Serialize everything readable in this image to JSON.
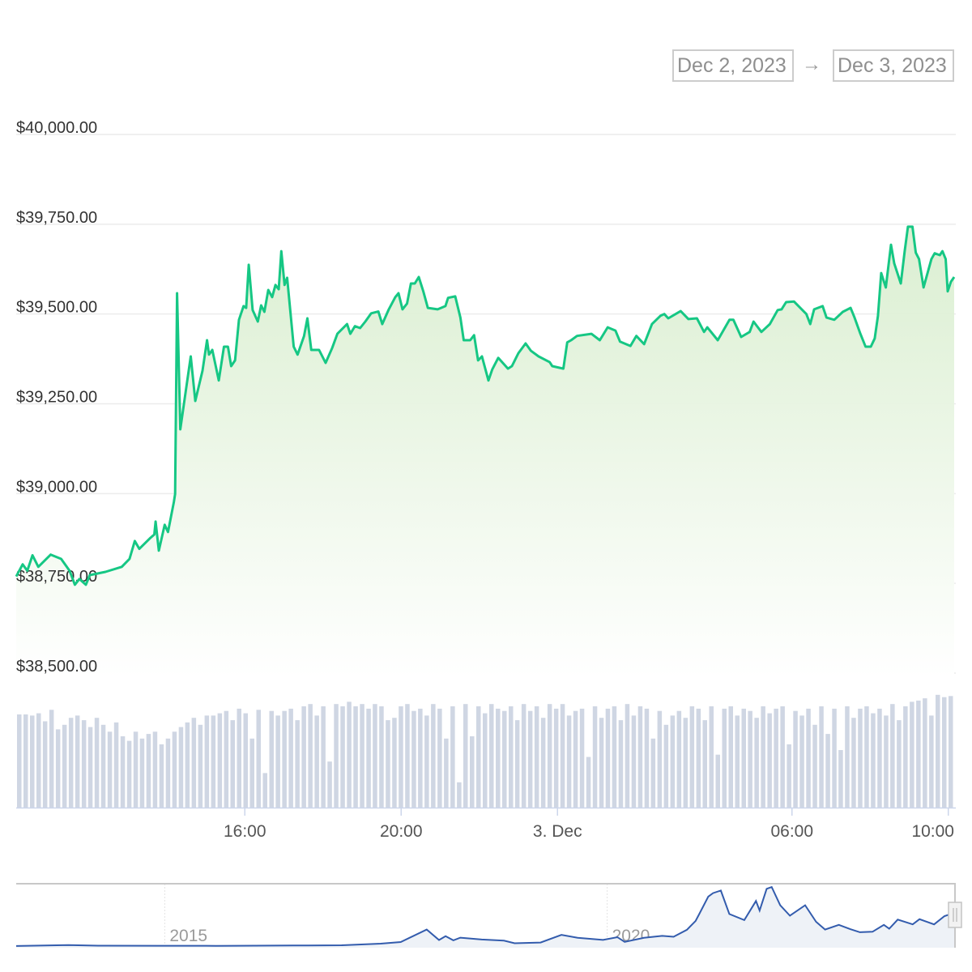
{
  "range_selector": {
    "from": "Dec 2, 2023",
    "arrow": "→",
    "to": "Dec 3, 2023"
  },
  "colors": {
    "line": "#16c784",
    "fill_top": "#d9eecf",
    "volume": "#cfd6e3",
    "navigator_line": "#335cad",
    "navigator_fill": "#eef2f7"
  },
  "chart_data": [
    {
      "type": "area",
      "xlim": [
        "2023-12-02 10:09",
        "2023-12-03 10:09"
      ],
      "ylim": [
        38500,
        40000
      ],
      "grid": true,
      "y_ticks": [
        {
          "value": 40000,
          "label": "$40,000.00"
        },
        {
          "value": 39750,
          "label": "$39,750.00"
        },
        {
          "value": 39500,
          "label": "$39,500.00"
        },
        {
          "value": 39250,
          "label": "$39,250.00"
        },
        {
          "value": 39000,
          "label": "$39,000.00"
        },
        {
          "value": 38750,
          "label": "$38,750.00"
        },
        {
          "value": 38500,
          "label": "$38,500.00"
        }
      ],
      "x_ticks": [
        {
          "time": "2023-12-02 16:00",
          "label": "16:00"
        },
        {
          "time": "2023-12-02 20:00",
          "label": "20:00"
        },
        {
          "time": "2023-12-03 00:00",
          "label": "3. Dec"
        },
        {
          "time": "2023-12-03 06:00",
          "label": "06:00"
        },
        {
          "time": "2023-12-03 10:00",
          "label": "10:00"
        }
      ],
      "points": [
        [
          "2023-12-02 10:09",
          38769
        ],
        [
          "2023-12-02 10:19",
          38803
        ],
        [
          "2023-12-02 10:26",
          38785
        ],
        [
          "2023-12-02 10:34",
          38828
        ],
        [
          "2023-12-02 10:43",
          38796
        ],
        [
          "2023-12-02 11:02",
          38830
        ],
        [
          "2023-12-02 11:18",
          38818
        ],
        [
          "2023-12-02 11:31",
          38785
        ],
        [
          "2023-12-02 11:39",
          38746
        ],
        [
          "2023-12-02 11:46",
          38762
        ],
        [
          "2023-12-02 11:56",
          38746
        ],
        [
          "2023-12-02 12:02",
          38773
        ],
        [
          "2023-12-02 12:26",
          38782
        ],
        [
          "2023-12-02 12:51",
          38796
        ],
        [
          "2023-12-02 13:03",
          38818
        ],
        [
          "2023-12-02 13:11",
          38868
        ],
        [
          "2023-12-02 13:18",
          38846
        ],
        [
          "2023-12-02 13:34",
          38875
        ],
        [
          "2023-12-02 13:41",
          38886
        ],
        [
          "2023-12-02 13:43",
          38922
        ],
        [
          "2023-12-02 13:48",
          38841
        ],
        [
          "2023-12-02 13:57",
          38913
        ],
        [
          "2023-12-02 14:02",
          38893
        ],
        [
          "2023-12-02 14:11",
          38976
        ],
        [
          "2023-12-02 14:13",
          38999
        ],
        [
          "2023-12-02 14:16",
          39558
        ],
        [
          "2023-12-02 14:21",
          39179
        ],
        [
          "2023-12-02 14:28",
          39269
        ],
        [
          "2023-12-02 14:37",
          39382
        ],
        [
          "2023-12-02 14:44",
          39258
        ],
        [
          "2023-12-02 14:55",
          39342
        ],
        [
          "2023-12-02 15:02",
          39427
        ],
        [
          "2023-12-02 15:05",
          39387
        ],
        [
          "2023-12-02 15:10",
          39400
        ],
        [
          "2023-12-02 15:20",
          39315
        ],
        [
          "2023-12-02 15:28",
          39409
        ],
        [
          "2023-12-02 15:34",
          39409
        ],
        [
          "2023-12-02 15:39",
          39355
        ],
        [
          "2023-12-02 15:45",
          39371
        ],
        [
          "2023-12-02 15:51",
          39484
        ],
        [
          "2023-12-02 15:58",
          39522
        ],
        [
          "2023-12-02 16:02",
          39517
        ],
        [
          "2023-12-02 16:06",
          39637
        ],
        [
          "2023-12-02 16:12",
          39511
        ],
        [
          "2023-12-02 16:20",
          39479
        ],
        [
          "2023-12-02 16:25",
          39524
        ],
        [
          "2023-12-02 16:30",
          39506
        ],
        [
          "2023-12-02 16:36",
          39567
        ],
        [
          "2023-12-02 16:42",
          39547
        ],
        [
          "2023-12-02 16:47",
          39581
        ],
        [
          "2023-12-02 16:52",
          39569
        ],
        [
          "2023-12-02 16:56",
          39675
        ],
        [
          "2023-12-02 17:01",
          39581
        ],
        [
          "2023-12-02 17:05",
          39601
        ],
        [
          "2023-12-02 17:15",
          39409
        ],
        [
          "2023-12-02 17:21",
          39387
        ],
        [
          "2023-12-02 17:31",
          39439
        ],
        [
          "2023-12-02 17:36",
          39488
        ],
        [
          "2023-12-02 17:42",
          39400
        ],
        [
          "2023-12-02 17:54",
          39400
        ],
        [
          "2023-12-02 18:04",
          39364
        ],
        [
          "2023-12-02 18:14",
          39405
        ],
        [
          "2023-12-02 18:22",
          39445
        ],
        [
          "2023-12-02 18:37",
          39472
        ],
        [
          "2023-12-02 18:42",
          39445
        ],
        [
          "2023-12-02 18:49",
          39466
        ],
        [
          "2023-12-02 18:57",
          39461
        ],
        [
          "2023-12-02 19:05",
          39479
        ],
        [
          "2023-12-02 19:14",
          39502
        ],
        [
          "2023-12-02 19:25",
          39507
        ],
        [
          "2023-12-02 19:31",
          39472
        ],
        [
          "2023-12-02 19:41",
          39513
        ],
        [
          "2023-12-02 19:51",
          39547
        ],
        [
          "2023-12-02 19:56",
          39558
        ],
        [
          "2023-12-02 20:02",
          39513
        ],
        [
          "2023-12-02 20:09",
          39529
        ],
        [
          "2023-12-02 20:15",
          39585
        ],
        [
          "2023-12-02 20:21",
          39585
        ],
        [
          "2023-12-02 20:27",
          39603
        ],
        [
          "2023-12-02 20:34",
          39563
        ],
        [
          "2023-12-02 20:41",
          39517
        ],
        [
          "2023-12-02 20:56",
          39513
        ],
        [
          "2023-12-02 21:08",
          39522
        ],
        [
          "2023-12-02 21:12",
          39545
        ],
        [
          "2023-12-02 21:23",
          39549
        ],
        [
          "2023-12-02 21:31",
          39490
        ],
        [
          "2023-12-02 21:36",
          39427
        ],
        [
          "2023-12-02 21:46",
          39427
        ],
        [
          "2023-12-02 21:52",
          39441
        ],
        [
          "2023-12-02 21:58",
          39371
        ],
        [
          "2023-12-02 22:04",
          39382
        ],
        [
          "2023-12-02 22:14",
          39315
        ],
        [
          "2023-12-02 22:20",
          39346
        ],
        [
          "2023-12-02 22:29",
          39378
        ],
        [
          "2023-12-02 22:38",
          39360
        ],
        [
          "2023-12-02 22:44",
          39348
        ],
        [
          "2023-12-02 22:50",
          39355
        ],
        [
          "2023-12-02 23:00",
          39391
        ],
        [
          "2023-12-02 23:11",
          39418
        ],
        [
          "2023-12-02 23:19",
          39398
        ],
        [
          "2023-12-02 23:31",
          39382
        ],
        [
          "2023-12-02 23:48",
          39366
        ],
        [
          "2023-12-02 23:52",
          39355
        ],
        [
          "2023-12-03 00:09",
          39348
        ],
        [
          "2023-12-03 00:15",
          39421
        ],
        [
          "2023-12-03 00:21",
          39427
        ],
        [
          "2023-12-03 00:30",
          39439
        ],
        [
          "2023-12-03 00:52",
          39445
        ],
        [
          "2023-12-03 01:05",
          39427
        ],
        [
          "2023-12-03 01:17",
          39463
        ],
        [
          "2023-12-03 01:29",
          39454
        ],
        [
          "2023-12-03 01:36",
          39423
        ],
        [
          "2023-12-03 01:52",
          39411
        ],
        [
          "2023-12-03 02:01",
          39439
        ],
        [
          "2023-12-03 02:13",
          39416
        ],
        [
          "2023-12-03 02:25",
          39472
        ],
        [
          "2023-12-03 02:38",
          39495
        ],
        [
          "2023-12-03 02:44",
          39500
        ],
        [
          "2023-12-03 02:50",
          39488
        ],
        [
          "2023-12-03 03:09",
          39508
        ],
        [
          "2023-12-03 03:21",
          39486
        ],
        [
          "2023-12-03 03:34",
          39488
        ],
        [
          "2023-12-03 03:45",
          39450
        ],
        [
          "2023-12-03 03:50",
          39463
        ],
        [
          "2023-12-03 04:06",
          39427
        ],
        [
          "2023-12-03 04:24",
          39484
        ],
        [
          "2023-12-03 04:30",
          39484
        ],
        [
          "2023-12-03 04:42",
          39436
        ],
        [
          "2023-12-03 04:55",
          39450
        ],
        [
          "2023-12-03 05:01",
          39479
        ],
        [
          "2023-12-03 05:13",
          39450
        ],
        [
          "2023-12-03 05:26",
          39472
        ],
        [
          "2023-12-03 05:38",
          39511
        ],
        [
          "2023-12-03 05:44",
          39513
        ],
        [
          "2023-12-03 05:51",
          39533
        ],
        [
          "2023-12-03 06:03",
          39535
        ],
        [
          "2023-12-03 06:22",
          39500
        ],
        [
          "2023-12-03 06:28",
          39472
        ],
        [
          "2023-12-03 06:34",
          39513
        ],
        [
          "2023-12-03 06:47",
          39522
        ],
        [
          "2023-12-03 06:53",
          39490
        ],
        [
          "2023-12-03 07:05",
          39484
        ],
        [
          "2023-12-03 07:18",
          39506
        ],
        [
          "2023-12-03 07:30",
          39517
        ],
        [
          "2023-12-03 07:36",
          39490
        ],
        [
          "2023-12-03 07:45",
          39445
        ],
        [
          "2023-12-03 07:53",
          39409
        ],
        [
          "2023-12-03 08:01",
          39409
        ],
        [
          "2023-12-03 08:07",
          39432
        ],
        [
          "2023-12-03 08:12",
          39495
        ],
        [
          "2023-12-03 08:17",
          39614
        ],
        [
          "2023-12-03 08:24",
          39574
        ],
        [
          "2023-12-03 08:32",
          39693
        ],
        [
          "2023-12-03 08:37",
          39641
        ],
        [
          "2023-12-03 08:47",
          39585
        ],
        [
          "2023-12-03 08:53",
          39675
        ],
        [
          "2023-12-03 08:58",
          39743
        ],
        [
          "2023-12-03 09:05",
          39743
        ],
        [
          "2023-12-03 09:10",
          39671
        ],
        [
          "2023-12-03 09:15",
          39653
        ],
        [
          "2023-12-03 09:22",
          39574
        ],
        [
          "2023-12-03 09:34",
          39653
        ],
        [
          "2023-12-03 09:39",
          39669
        ],
        [
          "2023-12-03 09:47",
          39664
        ],
        [
          "2023-12-03 09:51",
          39675
        ],
        [
          "2023-12-03 09:56",
          39653
        ],
        [
          "2023-12-03 09:59",
          39563
        ],
        [
          "2023-12-03 10:04",
          39590
        ],
        [
          "2023-12-03 10:09",
          39603
        ]
      ]
    },
    {
      "type": "bar",
      "volume_relative": [
        81,
        81,
        80,
        82,
        75,
        85,
        68,
        72,
        78,
        80,
        76,
        70,
        78,
        72,
        66,
        74,
        62,
        58,
        66,
        60,
        64,
        66,
        55,
        60,
        66,
        70,
        74,
        78,
        72,
        80,
        80,
        82,
        84,
        76,
        86,
        82,
        60,
        85,
        30,
        84,
        80,
        84,
        86,
        76,
        88,
        90,
        80,
        88,
        40,
        90,
        88,
        92,
        88,
        90,
        86,
        90,
        88,
        76,
        78,
        88,
        90,
        84,
        86,
        80,
        90,
        86,
        60,
        88,
        22,
        90,
        62,
        88,
        82,
        90,
        86,
        84,
        88,
        76,
        90,
        84,
        88,
        78,
        90,
        86,
        90,
        80,
        84,
        86,
        44,
        88,
        78,
        86,
        88,
        76,
        90,
        80,
        88,
        86,
        60,
        84,
        72,
        80,
        84,
        78,
        88,
        86,
        76,
        88,
        46,
        86,
        88,
        80,
        86,
        84,
        78,
        88,
        82,
        86,
        88,
        55,
        84,
        80,
        86,
        72,
        88,
        64,
        86,
        50,
        88,
        78,
        86,
        88,
        82,
        86,
        80,
        90,
        76,
        88,
        92,
        93,
        95,
        80,
        98,
        96,
        97
      ]
    },
    {
      "type": "area",
      "role": "navigator",
      "xlim": [
        "2013-04-28",
        "2023-12-03"
      ],
      "ylim": [
        0,
        70000
      ],
      "x_labels": [
        {
          "date": "2015-01-01",
          "label": "2015"
        },
        {
          "date": "2020-01-01",
          "label": "2020"
        }
      ],
      "points": [
        [
          "2013-04-28",
          130
        ],
        [
          "2013-11-30",
          1100
        ],
        [
          "2014-04-01",
          450
        ],
        [
          "2014-12-01",
          370
        ],
        [
          "2015-08-01",
          260
        ],
        [
          "2016-06-15",
          700
        ],
        [
          "2016-12-31",
          960
        ],
        [
          "2017-06-10",
          2800
        ],
        [
          "2017-09-01",
          4700
        ],
        [
          "2017-12-17",
          19000
        ],
        [
          "2018-02-06",
          7000
        ],
        [
          "2018-03-05",
          11400
        ],
        [
          "2018-04-06",
          6600
        ],
        [
          "2018-05-05",
          9700
        ],
        [
          "2018-08-01",
          7600
        ],
        [
          "2018-11-01",
          6300
        ],
        [
          "2018-12-15",
          3300
        ],
        [
          "2019-04-01",
          4100
        ],
        [
          "2019-06-26",
          12900
        ],
        [
          "2019-09-01",
          9600
        ],
        [
          "2019-12-15",
          7100
        ],
        [
          "2020-02-12",
          10300
        ],
        [
          "2020-03-13",
          4900
        ],
        [
          "2020-06-01",
          9500
        ],
        [
          "2020-08-15",
          11800
        ],
        [
          "2020-10-01",
          10700
        ],
        [
          "2020-11-25",
          18800
        ],
        [
          "2020-12-31",
          29000
        ],
        [
          "2021-01-15",
          37000
        ],
        [
          "2021-02-21",
          57000
        ],
        [
          "2021-03-13",
          61000
        ],
        [
          "2021-04-14",
          64000
        ],
        [
          "2021-05-19",
          37000
        ],
        [
          "2021-07-20",
          30000
        ],
        [
          "2021-09-06",
          52000
        ],
        [
          "2021-09-21",
          41000
        ],
        [
          "2021-10-20",
          66000
        ],
        [
          "2021-11-10",
          68000
        ],
        [
          "2021-12-15",
          47000
        ],
        [
          "2022-01-24",
          35000
        ],
        [
          "2022-03-28",
          47000
        ],
        [
          "2022-05-12",
          28000
        ],
        [
          "2022-06-18",
          19000
        ],
        [
          "2022-08-14",
          24500
        ],
        [
          "2022-09-30",
          19500
        ],
        [
          "2022-11-09",
          16000
        ],
        [
          "2022-12-31",
          16500
        ],
        [
          "2023-02-16",
          24500
        ],
        [
          "2023-03-10",
          20000
        ],
        [
          "2023-04-14",
          30500
        ],
        [
          "2023-06-15",
          25000
        ],
        [
          "2023-07-13",
          31000
        ],
        [
          "2023-09-11",
          25000
        ],
        [
          "2023-10-24",
          34500
        ],
        [
          "2023-11-30",
          38000
        ],
        [
          "2023-12-03",
          39600
        ]
      ]
    }
  ]
}
